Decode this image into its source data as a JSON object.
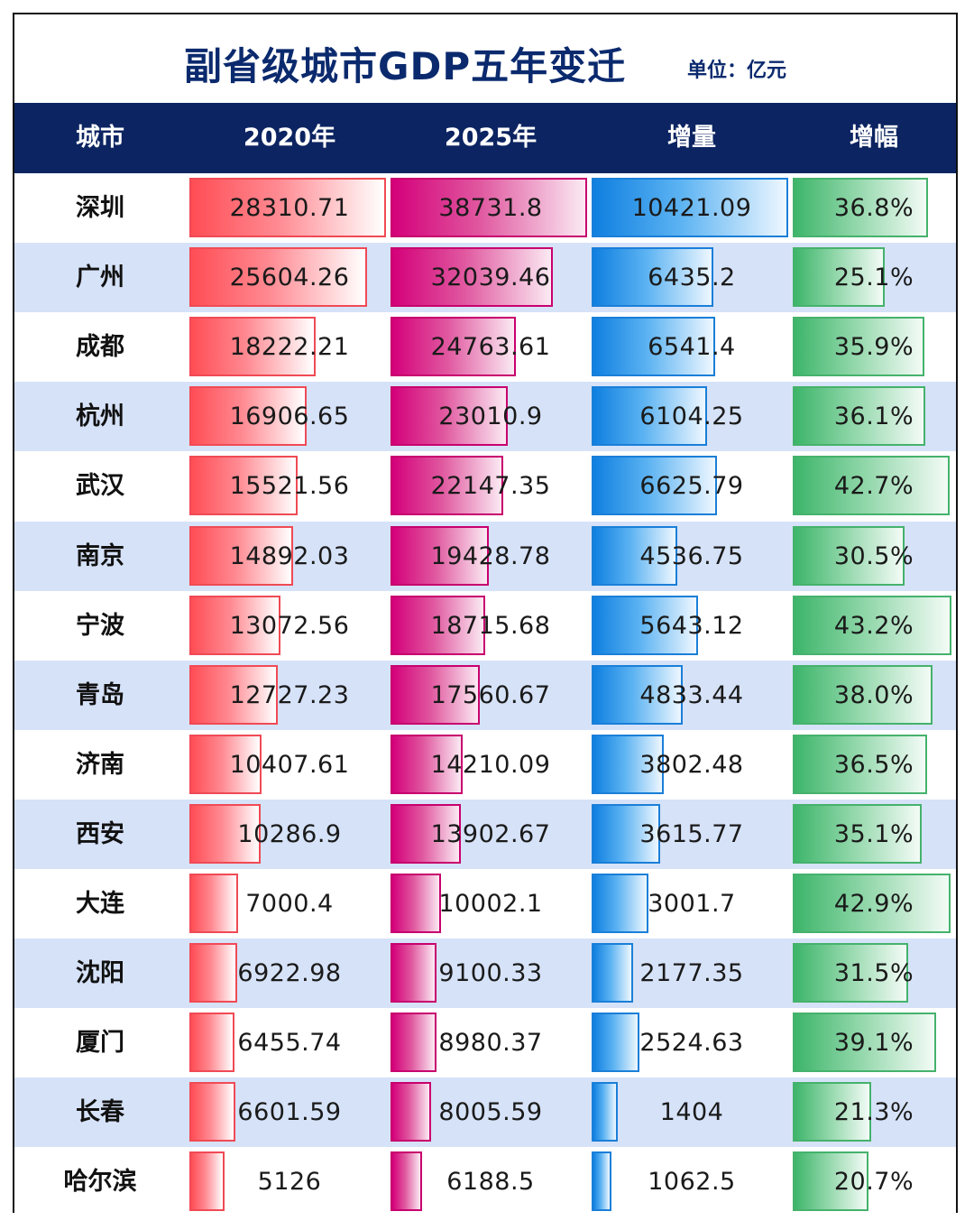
{
  "title": "副省级城市GDP五年变迁",
  "unit": "单位：亿元",
  "headers": [
    "城市",
    "2020年",
    "2025年",
    "增量",
    "增幅"
  ],
  "colors": {
    "header_bg": "#0c2461",
    "title": "#0b2a6e",
    "row_alt": "#d6e2f8",
    "bar_2020": "#ff4d55",
    "bar_2025": "#d4007a",
    "bar_increase": "#0f7fe0",
    "bar_growth": "#3db56a"
  },
  "chart_data": {
    "type": "table",
    "title": "副省级城市GDP五年变迁",
    "unit": "单位：亿元",
    "columns": [
      "城市",
      "2020年",
      "2025年",
      "增量",
      "增幅"
    ],
    "rows": [
      {
        "city": "深圳",
        "gdp2020": "28310.71",
        "gdp2025": "38731.8",
        "increase": "10421.09",
        "growth": "36.8%"
      },
      {
        "city": "广州",
        "gdp2020": "25604.26",
        "gdp2025": "32039.46",
        "increase": "6435.2",
        "growth": "25.1%"
      },
      {
        "city": "成都",
        "gdp2020": "18222.21",
        "gdp2025": "24763.61",
        "increase": "6541.4",
        "growth": "35.9%"
      },
      {
        "city": "杭州",
        "gdp2020": "16906.65",
        "gdp2025": "23010.9",
        "increase": "6104.25",
        "growth": "36.1%"
      },
      {
        "city": "武汉",
        "gdp2020": "15521.56",
        "gdp2025": "22147.35",
        "increase": "6625.79",
        "growth": "42.7%"
      },
      {
        "city": "南京",
        "gdp2020": "14892.03",
        "gdp2025": "19428.78",
        "increase": "4536.75",
        "growth": "30.5%"
      },
      {
        "city": "宁波",
        "gdp2020": "13072.56",
        "gdp2025": "18715.68",
        "increase": "5643.12",
        "growth": "43.2%"
      },
      {
        "city": "青岛",
        "gdp2020": "12727.23",
        "gdp2025": "17560.67",
        "increase": "4833.44",
        "growth": "38.0%"
      },
      {
        "city": "济南",
        "gdp2020": "10407.61",
        "gdp2025": "14210.09",
        "increase": "3802.48",
        "growth": "36.5%"
      },
      {
        "city": "西安",
        "gdp2020": "10286.9",
        "gdp2025": "13902.67",
        "increase": "3615.77",
        "growth": "35.1%"
      },
      {
        "city": "大连",
        "gdp2020": "7000.4",
        "gdp2025": "10002.1",
        "increase": "3001.7",
        "growth": "42.9%"
      },
      {
        "city": "沈阳",
        "gdp2020": "6922.98",
        "gdp2025": "9100.33",
        "increase": "2177.35",
        "growth": "31.5%"
      },
      {
        "city": "厦门",
        "gdp2020": "6455.74",
        "gdp2025": "8980.37",
        "increase": "2524.63",
        "growth": "39.1%"
      },
      {
        "city": "长春",
        "gdp2020": "6601.59",
        "gdp2025": "8005.59",
        "increase": "1404",
        "growth": "21.3%"
      },
      {
        "city": "哈尔滨",
        "gdp2020": "5126",
        "gdp2025": "6188.5",
        "increase": "1062.5",
        "growth": "20.7%"
      }
    ]
  }
}
